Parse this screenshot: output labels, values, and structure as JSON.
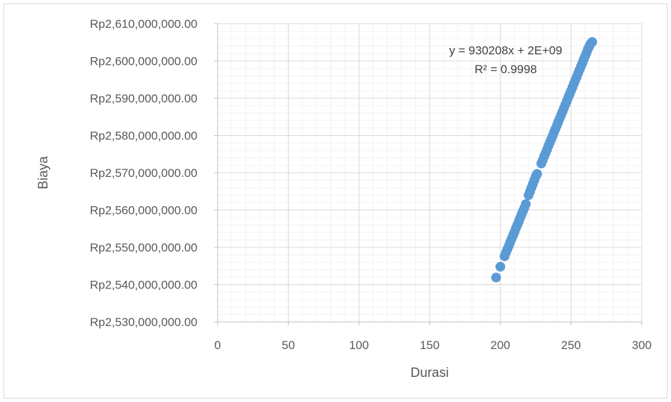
{
  "chart_data": {
    "type": "scatter",
    "title": "",
    "xlabel": "Durasi",
    "ylabel": "Biaya",
    "xlim": [
      0,
      300
    ],
    "ylim": [
      2530000000,
      2610000000
    ],
    "x_ticks": [
      "0",
      "50",
      "100",
      "150",
      "200",
      "250",
      "300"
    ],
    "y_ticks": [
      "Rp2,530,000,000.00",
      "Rp2,540,000,000.00",
      "Rp2,550,000,000.00",
      "Rp2,560,000,000.00",
      "Rp2,570,000,000.00",
      "Rp2,580,000,000.00",
      "Rp2,590,000,000.00",
      "Rp2,600,000,000.00",
      "Rp2,610,000,000.00"
    ],
    "grid": true,
    "legend": "none",
    "marker_color": "#5b9bd5",
    "trendline": {
      "equation": "y = 930208x + 2E+09",
      "r_squared": "R² = 0.9998"
    },
    "x": [
      197,
      200,
      203,
      204,
      205,
      206,
      207,
      208,
      209,
      210,
      211,
      212,
      213,
      214,
      215,
      216,
      217,
      218,
      220,
      221,
      222,
      223,
      224,
      225,
      226,
      229,
      230,
      231,
      232,
      233,
      234,
      235,
      236,
      237,
      238,
      239,
      240,
      241,
      242,
      243,
      244,
      245,
      246,
      247,
      248,
      249,
      250,
      251,
      252,
      253,
      254,
      255,
      256,
      257,
      258,
      259,
      260,
      261,
      262,
      263,
      264,
      265
    ],
    "y": [
      2541900000,
      2544800000,
      2547600000,
      2548600000,
      2549500000,
      2550400000,
      2551400000,
      2552300000,
      2553200000,
      2554100000,
      2555100000,
      2556000000,
      2556900000,
      2557900000,
      2558800000,
      2559700000,
      2560600000,
      2561600000,
      2564000000,
      2565000000,
      2566000000,
      2567000000,
      2568000000,
      2569000000,
      2569700000,
      2572500000,
      2573400000,
      2574400000,
      2575300000,
      2576200000,
      2577200000,
      2578100000,
      2579000000,
      2579900000,
      2580900000,
      2581800000,
      2582700000,
      2583700000,
      2584600000,
      2585500000,
      2586400000,
      2587400000,
      2588300000,
      2589200000,
      2590200000,
      2591100000,
      2592000000,
      2592900000,
      2593900000,
      2594800000,
      2595700000,
      2596700000,
      2597600000,
      2598500000,
      2599400000,
      2600400000,
      2601300000,
      2602200000,
      2603200000,
      2604000000,
      2604700000,
      2605100000
    ]
  }
}
